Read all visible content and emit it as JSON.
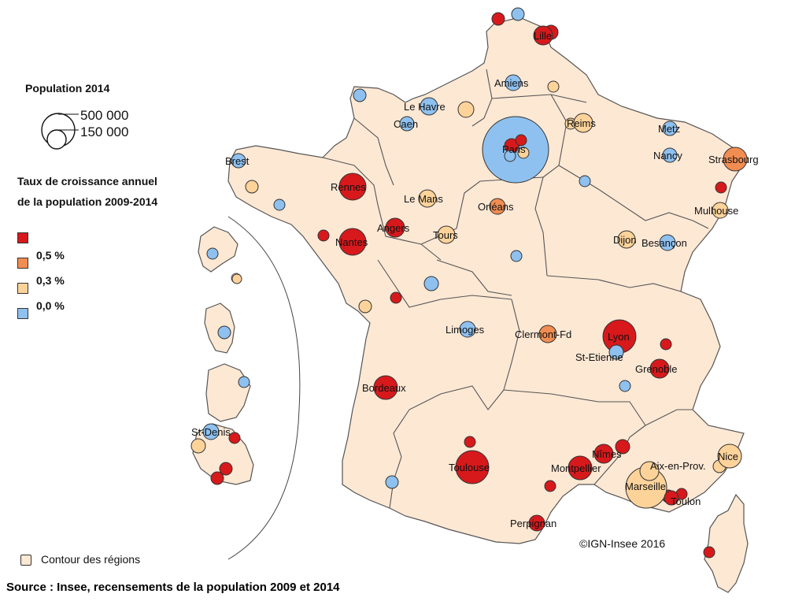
{
  "legend": {
    "size_title": "Population 2014",
    "size_large": "500 000",
    "size_small": "150 000",
    "growth_title_line1": "Taux de croissance annuel",
    "growth_title_line2": "de la population 2009-2014",
    "class_labels": [
      "0,5 %",
      "0,3 %",
      "0,0 %"
    ],
    "region_contour_label": "Contour des régions"
  },
  "colors": {
    "very_high": "#d7191c",
    "high": "#f28d52",
    "medium": "#fdd39a",
    "low": "#8ec1f0",
    "land": "#fde8d4",
    "border": "#555555"
  },
  "cities": [
    {
      "name": "Lille",
      "class": "very_high"
    },
    {
      "name": "Amiens",
      "class": "low"
    },
    {
      "name": "Le Havre",
      "class": "low"
    },
    {
      "name": "Caen",
      "class": "low"
    },
    {
      "name": "Paris",
      "class": "low"
    },
    {
      "name": "Reims",
      "class": "medium"
    },
    {
      "name": "Metz",
      "class": "low"
    },
    {
      "name": "Nancy",
      "class": "low"
    },
    {
      "name": "Strasbourg",
      "class": "high"
    },
    {
      "name": "Mulhouse",
      "class": "medium"
    },
    {
      "name": "Brest",
      "class": "low"
    },
    {
      "name": "Rennes",
      "class": "very_high"
    },
    {
      "name": "Le Mans",
      "class": "medium"
    },
    {
      "name": "Orléans",
      "class": "high"
    },
    {
      "name": "Angers",
      "class": "very_high"
    },
    {
      "name": "Tours",
      "class": "medium"
    },
    {
      "name": "Nantes",
      "class": "very_high"
    },
    {
      "name": "Dijon",
      "class": "medium"
    },
    {
      "name": "Besançon",
      "class": "low"
    },
    {
      "name": "Limoges",
      "class": "low"
    },
    {
      "name": "Clermont-Fd",
      "class": "high"
    },
    {
      "name": "Lyon",
      "class": "very_high"
    },
    {
      "name": "St-Etienne",
      "class": "low"
    },
    {
      "name": "Grenoble",
      "class": "very_high"
    },
    {
      "name": "Bordeaux",
      "class": "very_high"
    },
    {
      "name": "Toulouse",
      "class": "very_high"
    },
    {
      "name": "Montpellier",
      "class": "very_high"
    },
    {
      "name": "Nîmes",
      "class": "very_high"
    },
    {
      "name": "Aix-en-Prov.",
      "class": "medium"
    },
    {
      "name": "Nice",
      "class": "medium"
    },
    {
      "name": "Marseille",
      "class": "medium"
    },
    {
      "name": "Toulon",
      "class": "very_high"
    },
    {
      "name": "Perpignan",
      "class": "very_high"
    },
    {
      "name": "St-Denis",
      "class": "low"
    }
  ],
  "copyright": "©IGN-Insee 2016",
  "source": "Source : Insee, recensements de la population 2009 et 2014"
}
